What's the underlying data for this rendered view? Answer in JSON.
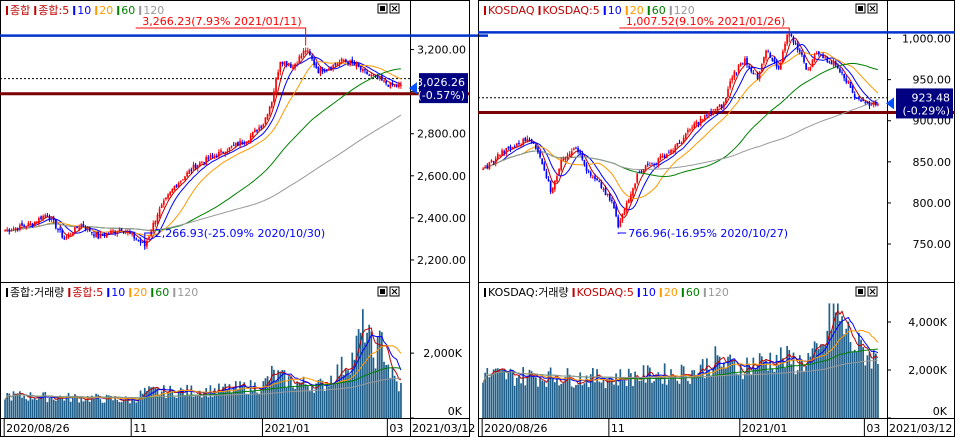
{
  "panels": [
    {
      "legend_price": [
        {
          "text": "종합",
          "color": "#c00000"
        },
        {
          "text": "종합:5",
          "color": "#c00000"
        },
        {
          "text": "10",
          "color": "#0000ff"
        },
        {
          "text": "20",
          "color": "#ff9900"
        },
        {
          "text": "60",
          "color": "#008000"
        },
        {
          "text": "120",
          "color": "#999999"
        }
      ],
      "legend_volume": [
        {
          "text": "종합:거래량",
          "color": "#000000"
        },
        {
          "text": "종합:5",
          "color": "#c00000"
        },
        {
          "text": "10",
          "color": "#0000ff"
        },
        {
          "text": "20",
          "color": "#ff9900"
        },
        {
          "text": "60",
          "color": "#008000"
        },
        {
          "text": "120",
          "color": "#999999"
        }
      ],
      "high_annotation": "3,266.23(7.93% 2021/01/11)",
      "low_annotation": "2,266.93(-25.09% 2020/10/30)",
      "current_value": "3,026.26",
      "current_change": "(-0.57%)",
      "x_labels": [
        "2020/08/26",
        "11",
        "2021/01",
        "03"
      ],
      "end_date": "2021/03/12"
    },
    {
      "legend_price": [
        {
          "text": "KOSDAQ",
          "color": "#c00000"
        },
        {
          "text": "KOSDAQ:5",
          "color": "#c00000"
        },
        {
          "text": "10",
          "color": "#0000ff"
        },
        {
          "text": "20",
          "color": "#ff9900"
        },
        {
          "text": "60",
          "color": "#008000"
        },
        {
          "text": "120",
          "color": "#999999"
        }
      ],
      "legend_volume": [
        {
          "text": "KOSDAQ:거래량",
          "color": "#000000"
        },
        {
          "text": "KOSDAQ:5",
          "color": "#c00000"
        },
        {
          "text": "10",
          "color": "#0000ff"
        },
        {
          "text": "20",
          "color": "#ff9900"
        },
        {
          "text": "60",
          "color": "#008000"
        },
        {
          "text": "120",
          "color": "#999999"
        }
      ],
      "high_annotation": "1,007.52(9.10% 2021/01/26)",
      "low_annotation": "766.96(-16.95% 2020/10/27)",
      "current_value": "923.48",
      "current_change": "(-0.29%)",
      "x_labels": [
        "2020/08/26",
        "11",
        "2021/01",
        "03"
      ],
      "end_date": "2021/03/12"
    }
  ],
  "chart_data": [
    {
      "type": "candlestick",
      "name": "종합",
      "x": [
        "2020/08/26",
        "2020/11",
        "2021/01",
        "2021/03",
        "2021/03/12"
      ],
      "ylim": [
        2100,
        3350
      ],
      "yticks": [
        2200,
        2400,
        2600,
        2800,
        3000,
        3200
      ],
      "ytick_labels": [
        "2,200.00",
        "2,400.00",
        "2,600.00",
        "2,800.00",
        "3,000.00",
        "3,200.00"
      ],
      "close_waypoints": [
        [
          0,
          2340
        ],
        [
          12,
          2370
        ],
        [
          20,
          2420
        ],
        [
          28,
          2300
        ],
        [
          36,
          2370
        ],
        [
          44,
          2310
        ],
        [
          55,
          2350
        ],
        [
          62,
          2300
        ],
        [
          66,
          2267
        ],
        [
          72,
          2420
        ],
        [
          80,
          2550
        ],
        [
          90,
          2650
        ],
        [
          100,
          2700
        ],
        [
          108,
          2740
        ],
        [
          115,
          2780
        ],
        [
          122,
          2850
        ],
        [
          126,
          2960
        ],
        [
          130,
          3150
        ],
        [
          136,
          3120
        ],
        [
          142,
          3200
        ],
        [
          148,
          3100
        ],
        [
          154,
          3120
        ],
        [
          160,
          3150
        ],
        [
          166,
          3120
        ],
        [
          170,
          3090
        ],
        [
          176,
          3060
        ],
        [
          182,
          3030
        ],
        [
          186,
          3026
        ]
      ],
      "high": 3266.23,
      "high_date": "2021/01/11",
      "high_change_pct": 7.93,
      "low": 2266.93,
      "low_date": "2020/10/30",
      "low_change_pct": -25.09,
      "last": 3026.26,
      "last_change_pct": -0.57,
      "horizontal_lines": {
        "blue": 3266.23,
        "dark_red": 2990,
        "dashed": 3062
      },
      "moving_averages": [
        5,
        10,
        20,
        60,
        120
      ],
      "volume": {
        "ylim": [
          0,
          3700
        ],
        "yticks": [
          0,
          2000
        ],
        "ytick_labels": [
          "0K",
          "2,000K"
        ],
        "waypoints": [
          [
            0,
            700
          ],
          [
            20,
            650
          ],
          [
            40,
            620
          ],
          [
            60,
            550
          ],
          [
            66,
            800
          ],
          [
            80,
            820
          ],
          [
            100,
            850
          ],
          [
            122,
            1000
          ],
          [
            126,
            1350
          ],
          [
            136,
            1100
          ],
          [
            150,
            1000
          ],
          [
            164,
            1850
          ],
          [
            170,
            2900
          ],
          [
            174,
            1900
          ],
          [
            178,
            2350
          ],
          [
            182,
            1400
          ],
          [
            186,
            950
          ]
        ]
      }
    },
    {
      "type": "candlestick",
      "name": "KOSDAQ",
      "x": [
        "2020/08/26",
        "2020/11",
        "2021/01",
        "2021/03",
        "2021/03/12"
      ],
      "ylim": [
        705,
        1025
      ],
      "yticks": [
        750,
        800,
        850,
        900,
        950,
        1000
      ],
      "ytick_labels": [
        "750.00",
        "800.00",
        "850.00",
        "900.00",
        "950.00",
        "1,000.00"
      ],
      "close_waypoints": [
        [
          0,
          840
        ],
        [
          8,
          860
        ],
        [
          16,
          870
        ],
        [
          22,
          880
        ],
        [
          28,
          850
        ],
        [
          32,
          815
        ],
        [
          38,
          855
        ],
        [
          44,
          870
        ],
        [
          50,
          835
        ],
        [
          56,
          820
        ],
        [
          62,
          795
        ],
        [
          64,
          770
        ],
        [
          68,
          800
        ],
        [
          74,
          840
        ],
        [
          82,
          850
        ],
        [
          92,
          870
        ],
        [
          100,
          895
        ],
        [
          108,
          910
        ],
        [
          114,
          920
        ],
        [
          118,
          955
        ],
        [
          124,
          975
        ],
        [
          130,
          950
        ],
        [
          134,
          985
        ],
        [
          140,
          960
        ],
        [
          144,
          1007
        ],
        [
          148,
          995
        ],
        [
          154,
          960
        ],
        [
          158,
          985
        ],
        [
          162,
          975
        ],
        [
          166,
          970
        ],
        [
          170,
          960
        ],
        [
          176,
          930
        ],
        [
          182,
          920
        ],
        [
          187,
          923
        ]
      ],
      "high": 1007.52,
      "high_date": "2021/01/26",
      "high_change_pct": 9.1,
      "low": 766.96,
      "low_date": "2020/10/27",
      "low_change_pct": -16.95,
      "last": 923.48,
      "last_change_pct": -0.29,
      "horizontal_lines": {
        "blue": 1007.52,
        "dark_red": 910,
        "dashed": 928
      },
      "moving_averages": [
        5,
        10,
        20,
        60,
        120
      ],
      "volume": {
        "ylim": [
          0,
          5000
        ],
        "yticks": [
          0,
          2000,
          4000
        ],
        "ytick_labels": [
          "0K",
          "2,000K",
          "4,000K"
        ],
        "waypoints": [
          [
            0,
            1800
          ],
          [
            20,
            1750
          ],
          [
            40,
            1700
          ],
          [
            60,
            1650
          ],
          [
            80,
            1800
          ],
          [
            100,
            1900
          ],
          [
            110,
            2400
          ],
          [
            120,
            2100
          ],
          [
            140,
            2500
          ],
          [
            150,
            2300
          ],
          [
            160,
            2700
          ],
          [
            166,
            4500
          ],
          [
            170,
            3900
          ],
          [
            176,
            3000
          ],
          [
            182,
            2700
          ],
          [
            187,
            2400
          ]
        ]
      }
    }
  ]
}
